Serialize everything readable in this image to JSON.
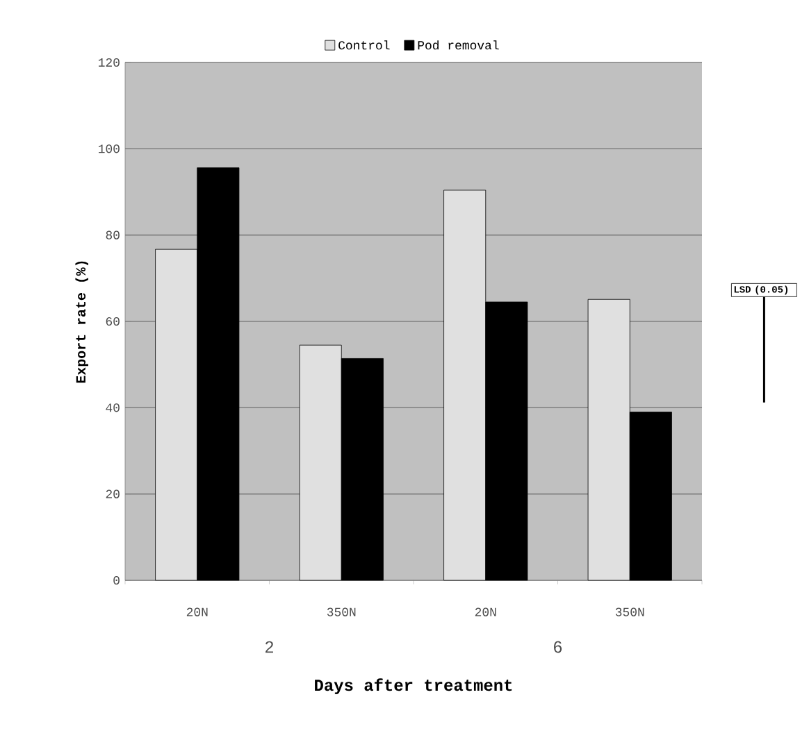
{
  "chart_data": {
    "type": "bar",
    "categories": [
      "20N",
      "350N",
      "20N",
      "350N"
    ],
    "series": [
      {
        "name": "Control",
        "color": "#e0e0e0",
        "values": [
          76.7,
          54.5,
          90.4,
          65.1
        ]
      },
      {
        "name": "Pod removal",
        "color": "#000000",
        "values": [
          95.6,
          51.4,
          64.5,
          39.0
        ]
      }
    ],
    "xlabel": "Days after treatment",
    "ylabel": "Export rate (%)",
    "annotations": [
      "2",
      "6",
      "LSD (0.05)"
    ],
    "ylim": [
      0,
      120
    ],
    "yticks": [
      0,
      20,
      40,
      60,
      80,
      100,
      120
    ],
    "grid": "y",
    "legend": "top"
  }
}
